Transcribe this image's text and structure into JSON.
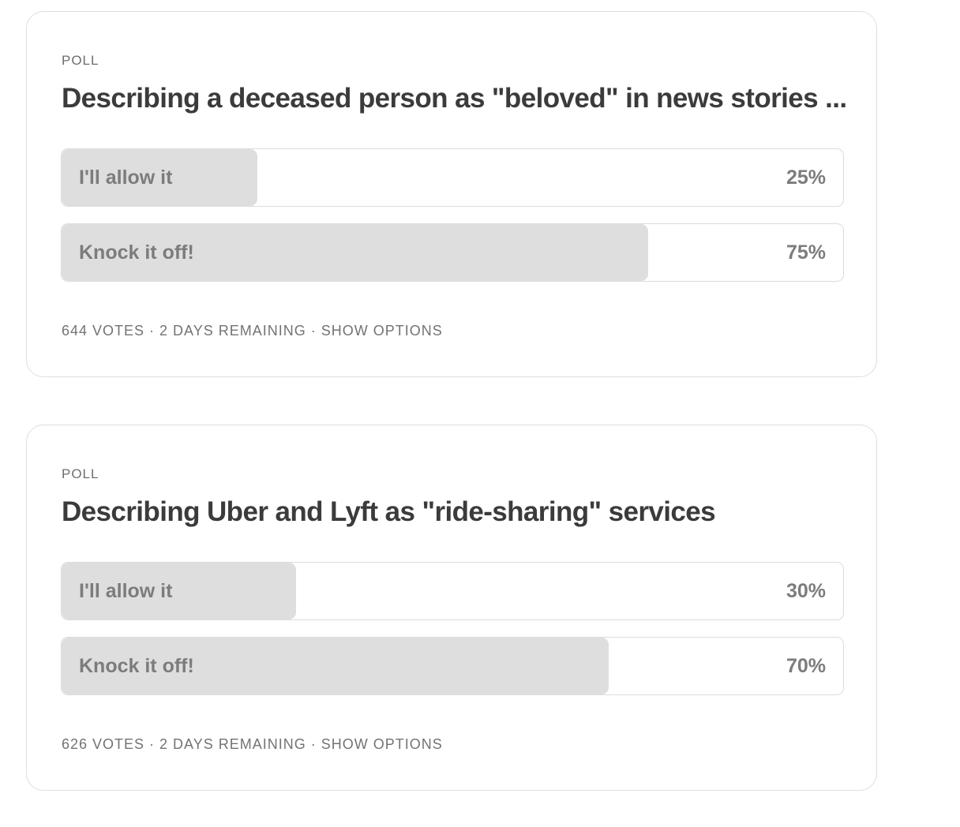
{
  "polls": [
    {
      "kicker": "POLL",
      "question": "Describing a deceased person as \"beloved\" in news stories ...",
      "options": [
        {
          "label": "I'll allow it",
          "percent_label": "25%",
          "share": 0.25
        },
        {
          "label": "Knock it off!",
          "percent_label": "75%",
          "share": 0.75
        }
      ],
      "votes": "644 VOTES",
      "remaining": "2 DAYS REMAINING",
      "separator": " · ",
      "show_options": "SHOW OPTIONS"
    },
    {
      "kicker": "POLL",
      "question": "Describing Uber and Lyft as \"ride-sharing\" services",
      "options": [
        {
          "label": "I'll allow it",
          "percent_label": "30%",
          "share": 0.3
        },
        {
          "label": "Knock it off!",
          "percent_label": "70%",
          "share": 0.7
        }
      ],
      "votes": "626 VOTES",
      "remaining": "2 DAYS REMAINING",
      "separator": " · ",
      "show_options": "SHOW OPTIONS"
    }
  ],
  "colors": {
    "fill": "#dedede",
    "border": "#dcdcdc",
    "question_text": "#3b3b3b",
    "muted_text": "#737373"
  }
}
